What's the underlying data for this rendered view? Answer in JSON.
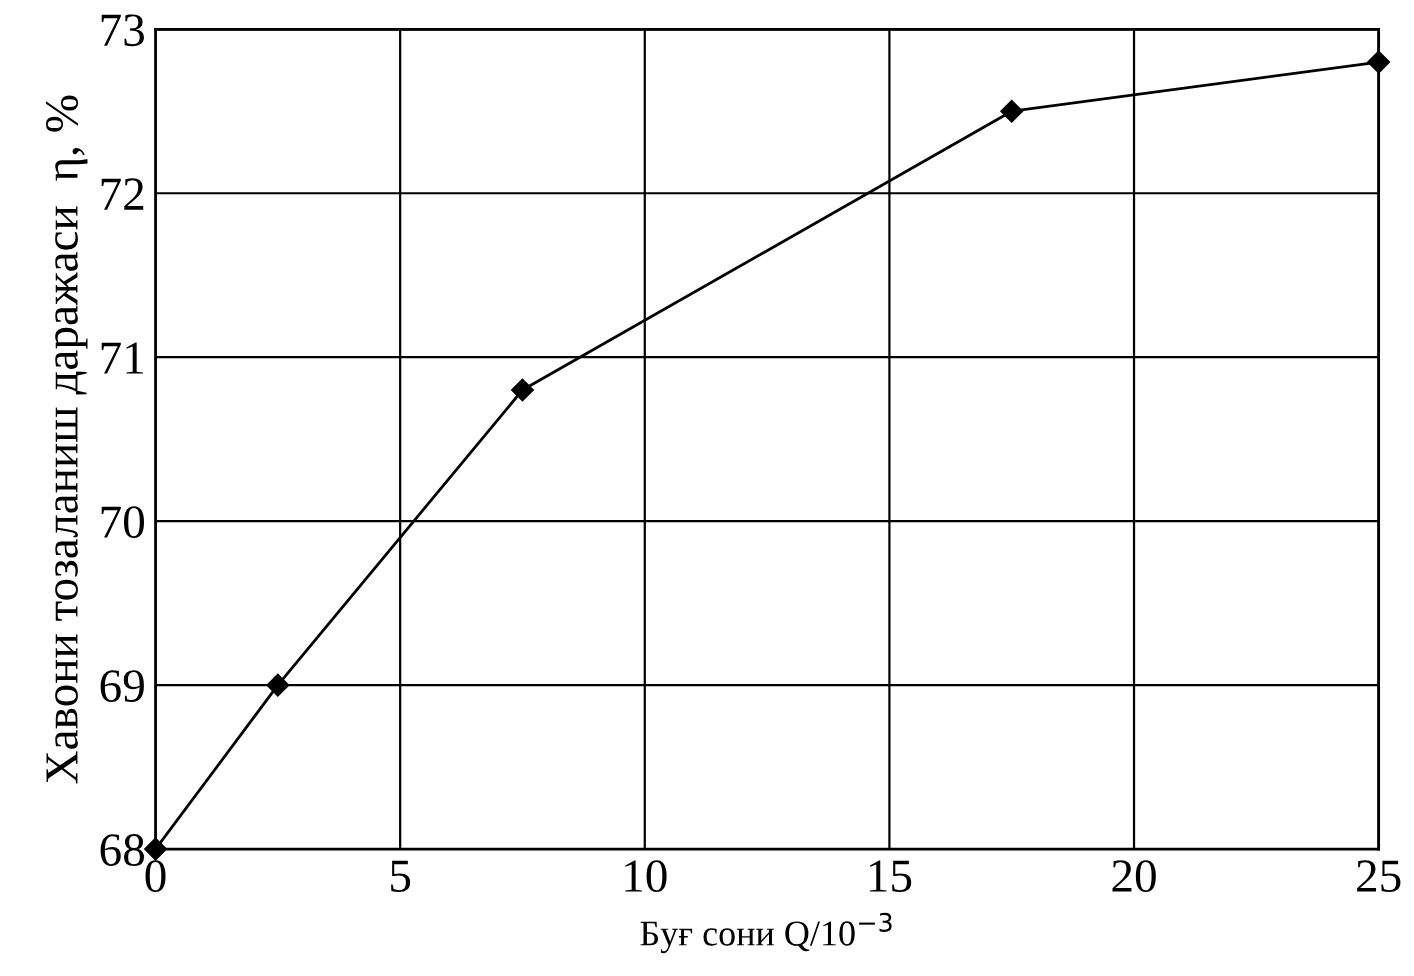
{
  "chart_data": {
    "type": "line",
    "xlabel": "Буғ сони Q/10$^{−3}$",
    "ylabel": "Хавони тозаланиш даражаси  η, %",
    "x": [
      0,
      2.5,
      7.5,
      17.5,
      25
    ],
    "series": [
      {
        "color": "#000000",
        "values": [
          68,
          69,
          70.8,
          72.5,
          72.8
        ]
      }
    ],
    "xlim": [
      0,
      25
    ],
    "xticks": [
      0,
      5,
      10,
      15,
      20,
      25
    ],
    "ylim": [
      68,
      73
    ],
    "yticks": [
      68,
      69,
      70,
      71,
      72,
      73
    ],
    "grid": true,
    "marker": "diamond",
    "line_style": "solid",
    "legend": false
  }
}
